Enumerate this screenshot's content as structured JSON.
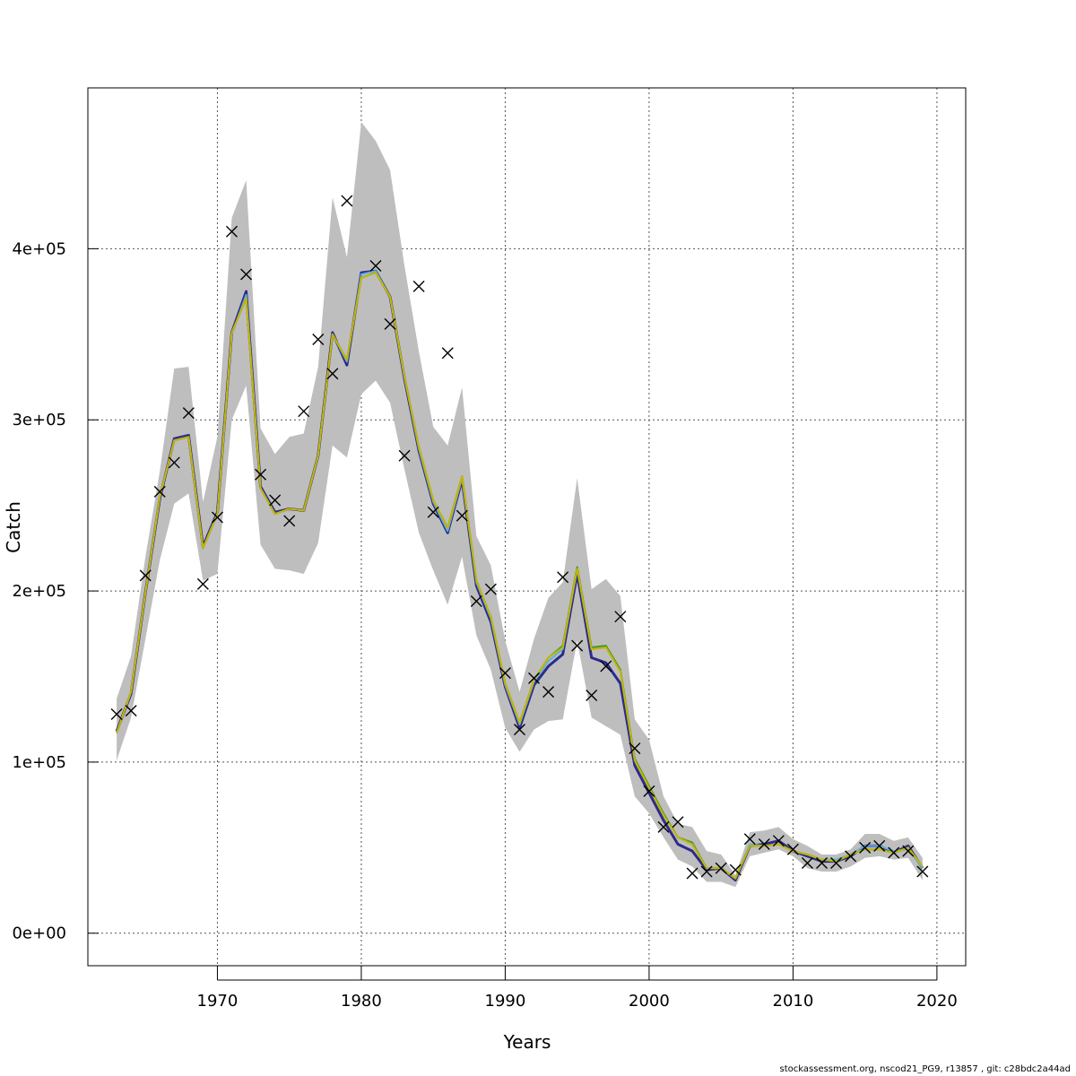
{
  "chart_data": {
    "type": "line",
    "title": "",
    "xlabel": "Years",
    "ylabel": "Catch",
    "xlim": [
      1961,
      2022
    ],
    "ylim": [
      -19000,
      494000
    ],
    "grid": true,
    "x_ticks": [
      1970,
      1980,
      1990,
      2000,
      2010,
      2020
    ],
    "x_tick_labels": [
      "1970",
      "1980",
      "1990",
      "2000",
      "2010",
      "2020"
    ],
    "y_ticks": [
      0,
      100000,
      200000,
      300000,
      400000
    ],
    "y_tick_labels": [
      "0e+00",
      "1e+05",
      "2e+05",
      "3e+05",
      "4e+05"
    ],
    "years": [
      1963,
      1964,
      1965,
      1966,
      1967,
      1968,
      1969,
      1970,
      1971,
      1972,
      1973,
      1974,
      1975,
      1976,
      1977,
      1978,
      1979,
      1980,
      1981,
      1982,
      1983,
      1984,
      1985,
      1986,
      1987,
      1988,
      1989,
      1990,
      1991,
      1992,
      1993,
      1994,
      1995,
      1996,
      1997,
      1998,
      1999,
      2000,
      2001,
      2002,
      2003,
      2004,
      2005,
      2006,
      2007,
      2008,
      2009,
      2010,
      2011,
      2012,
      2013,
      2014,
      2015,
      2016,
      2017,
      2018,
      2019
    ],
    "observed_catch": [
      128000,
      130000,
      209000,
      258000,
      275000,
      304000,
      204000,
      243000,
      410000,
      385000,
      268000,
      253000,
      241000,
      305000,
      347000,
      327000,
      428000,
      null,
      390000,
      356000,
      279000,
      378000,
      246000,
      339000,
      244000,
      194000,
      201000,
      152000,
      119000,
      149000,
      141000,
      208000,
      168000,
      139000,
      156000,
      185000,
      108000,
      83000,
      62000,
      65000,
      35000,
      36000,
      38000,
      37000,
      55000,
      52000,
      54000,
      49000,
      41000,
      41000,
      41000,
      45000,
      50000,
      51000,
      47000,
      48000,
      36000
    ],
    "ci_upper": [
      137000,
      162000,
      220000,
      270000,
      330000,
      331000,
      252000,
      290000,
      418000,
      440000,
      295000,
      280000,
      290000,
      292000,
      331000,
      430000,
      395000,
      474000,
      463000,
      446000,
      390000,
      340000,
      296000,
      285000,
      319000,
      232000,
      215000,
      171000,
      141000,
      172000,
      196000,
      205000,
      266000,
      201000,
      207000,
      197000,
      125000,
      113000,
      80000,
      64000,
      62000,
      48000,
      46000,
      34000,
      59000,
      60000,
      62000,
      55000,
      51000,
      46000,
      46000,
      49000,
      58000,
      58000,
      54000,
      56000,
      44000
    ],
    "ci_lower": [
      101000,
      126000,
      172000,
      218000,
      251000,
      257000,
      206000,
      210000,
      300000,
      320000,
      227000,
      213000,
      212000,
      210000,
      228000,
      285000,
      278000,
      315000,
      323000,
      310000,
      271000,
      234000,
      212000,
      192000,
      220000,
      174000,
      154000,
      120000,
      106000,
      119000,
      124000,
      125000,
      171000,
      126000,
      121000,
      116000,
      80000,
      70000,
      56000,
      43000,
      39000,
      30000,
      30000,
      27000,
      45000,
      47000,
      49000,
      45000,
      38000,
      36000,
      36000,
      39000,
      44000,
      45000,
      43000,
      44000,
      31000
    ],
    "series": [
      {
        "name": "",
        "color": "#2b2b8c",
        "values": [
          118000,
          140000,
          199000,
          254000,
          289000,
          291000,
          226000,
          246000,
          351000,
          375000,
          261000,
          246000,
          248000,
          247000,
          279000,
          351000,
          332000,
          386000,
          387000,
          372000,
          324000,
          282000,
          251000,
          234000,
          265000,
          203000,
          182000,
          144000,
          120000,
          145000,
          156000,
          163000,
          210000,
          161000,
          158000,
          146000,
          98000,
          82000,
          66000,
          52000,
          48000,
          37000,
          38000,
          31000,
          51000,
          52000,
          54000,
          48000,
          45000,
          42000,
          42000,
          45000,
          51000,
          51000,
          47000,
          51000,
          38000
        ]
      },
      {
        "name": "",
        "color": "#5eb2e0",
        "values": [
          117000,
          141000,
          199000,
          255000,
          288000,
          290000,
          225000,
          245000,
          350000,
          373000,
          260000,
          245000,
          248000,
          247000,
          279000,
          350000,
          334000,
          385000,
          387000,
          372000,
          325000,
          283000,
          252000,
          235000,
          266000,
          205000,
          184000,
          145000,
          122000,
          147000,
          159000,
          166000,
          213000,
          166000,
          167000,
          153000,
          101000,
          85000,
          69000,
          56000,
          52000,
          38000,
          38000,
          32000,
          52000,
          51000,
          52000,
          48000,
          46000,
          43000,
          43000,
          46000,
          51000,
          51000,
          48000,
          49000,
          38000
        ]
      },
      {
        "name": "",
        "color": "#3f9a26",
        "values": [
          117000,
          141000,
          199000,
          255000,
          288000,
          290000,
          225000,
          245000,
          351000,
          371000,
          260000,
          245000,
          248000,
          247000,
          279000,
          350000,
          335000,
          383000,
          386000,
          372000,
          325000,
          284000,
          253000,
          237000,
          267000,
          206000,
          185000,
          146000,
          123000,
          148000,
          161000,
          168000,
          214000,
          167000,
          168000,
          154000,
          102000,
          86000,
          70000,
          56000,
          53000,
          38000,
          38000,
          32000,
          51000,
          51000,
          52000,
          48000,
          46000,
          43000,
          42000,
          46000,
          49000,
          49000,
          47000,
          50000,
          39000
        ]
      },
      {
        "name": "",
        "color": "#c8b400",
        "values": [
          117000,
          141000,
          199000,
          255000,
          288000,
          290000,
          225000,
          245000,
          351000,
          371000,
          260000,
          245000,
          248000,
          247000,
          279000,
          350000,
          335000,
          383000,
          386000,
          372000,
          325000,
          284000,
          253000,
          237000,
          267000,
          206000,
          185000,
          146000,
          123000,
          148000,
          161000,
          167000,
          213000,
          166000,
          167000,
          153000,
          101000,
          85000,
          69000,
          56000,
          52000,
          38000,
          38000,
          32000,
          51000,
          51000,
          52000,
          48000,
          46000,
          43000,
          42000,
          46000,
          49000,
          49000,
          47000,
          50000,
          39000
        ]
      }
    ],
    "band_color": "#bebebe",
    "observed_marker": "x"
  },
  "footer": {
    "text": "stockassessment.org, nscod21_PG9, r13857 , git: c28bdc2a44ad"
  }
}
